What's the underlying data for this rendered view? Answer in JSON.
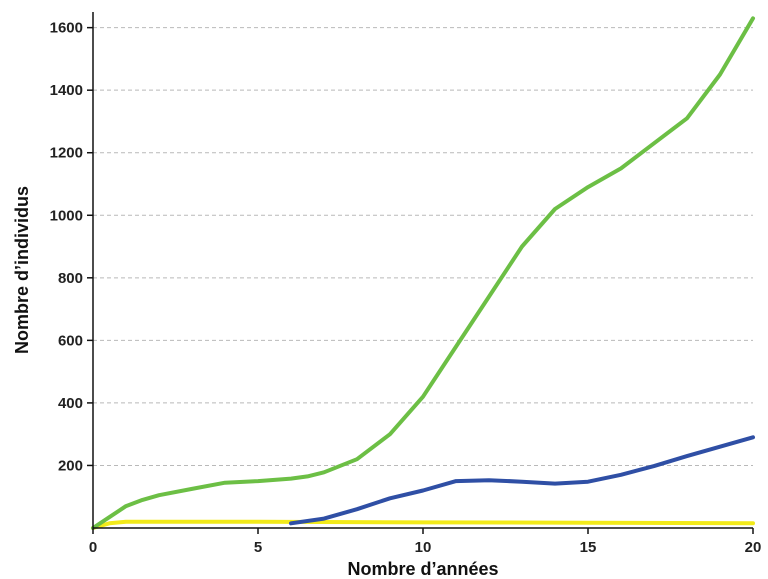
{
  "chart_data": {
    "type": "line",
    "title": "",
    "xlabel": "Nombre d’années",
    "ylabel": "Nombre d’individus",
    "xlim": [
      0,
      20
    ],
    "ylim": [
      0,
      1650
    ],
    "x_ticks": [
      0,
      5,
      10,
      15,
      20
    ],
    "y_ticks": [
      200,
      400,
      600,
      800,
      1000,
      1200,
      1400,
      1600
    ],
    "grid": {
      "horizontal": true,
      "style": "dashed"
    },
    "legend": "none",
    "series": [
      {
        "color": "#6cbf45",
        "x": [
          0,
          0.5,
          1,
          1.5,
          2,
          3,
          4,
          5,
          6,
          6.5,
          7,
          8,
          9,
          10,
          11,
          12,
          13,
          14,
          15,
          16,
          17,
          18,
          19,
          20
        ],
        "y": [
          0,
          35,
          70,
          90,
          105,
          125,
          145,
          150,
          158,
          165,
          178,
          220,
          300,
          420,
          580,
          740,
          900,
          1020,
          1090,
          1150,
          1230,
          1310,
          1450,
          1630
        ]
      },
      {
        "color": "#2f4fa5",
        "x": [
          6,
          7,
          8,
          9,
          10,
          11,
          12,
          13,
          14,
          15,
          16,
          17,
          18,
          19,
          20
        ],
        "y": [
          15,
          30,
          60,
          95,
          120,
          150,
          153,
          148,
          142,
          148,
          170,
          198,
          230,
          260,
          290
        ]
      },
      {
        "color": "#f2ea1a",
        "x": [
          0,
          0.5,
          1,
          5,
          10,
          15,
          20
        ],
        "y": [
          0,
          15,
          20,
          20,
          18,
          17,
          15
        ]
      }
    ]
  }
}
